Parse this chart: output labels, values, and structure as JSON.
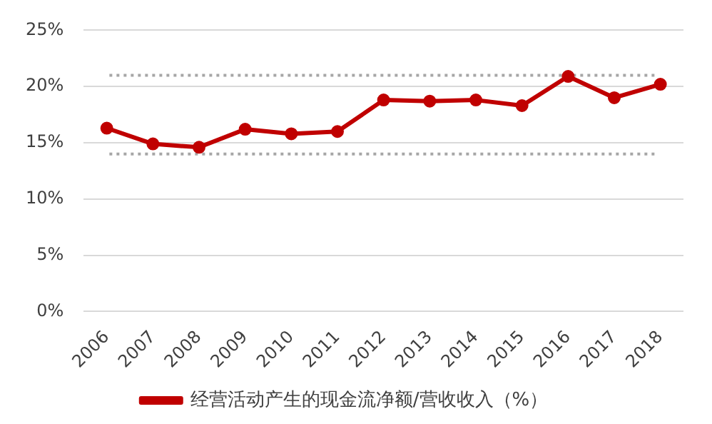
{
  "chart_data": {
    "type": "line",
    "categories": [
      "2006",
      "2007",
      "2008",
      "2009",
      "2010",
      "2011",
      "2012",
      "2013",
      "2014",
      "2015",
      "2016",
      "2017",
      "2018"
    ],
    "series": [
      {
        "name": "经营活动产生的现金流净额/营收收入（%）",
        "color": "#c00000",
        "values": [
          16.3,
          14.9,
          14.6,
          16.2,
          15.8,
          16.0,
          18.8,
          18.7,
          18.8,
          18.3,
          20.9,
          19.0,
          20.2
        ]
      }
    ],
    "ylim": [
      0,
      25
    ],
    "yticks": [
      {
        "value": 0,
        "label": "0%"
      },
      {
        "value": 5,
        "label": "5%"
      },
      {
        "value": 10,
        "label": "10%"
      },
      {
        "value": 15,
        "label": "15%"
      },
      {
        "value": 20,
        "label": "20%"
      },
      {
        "value": 25,
        "label": "25%"
      }
    ],
    "ref_lines": [
      {
        "axis": "y",
        "value": 21,
        "color": "#a6a6a6",
        "line_style": "dotted"
      },
      {
        "axis": "y",
        "value": 14,
        "color": "#a6a6a6",
        "line_style": "dotted"
      }
    ],
    "grid": "y",
    "legend": "bottom",
    "marker": "circle",
    "line_style": "solid"
  }
}
